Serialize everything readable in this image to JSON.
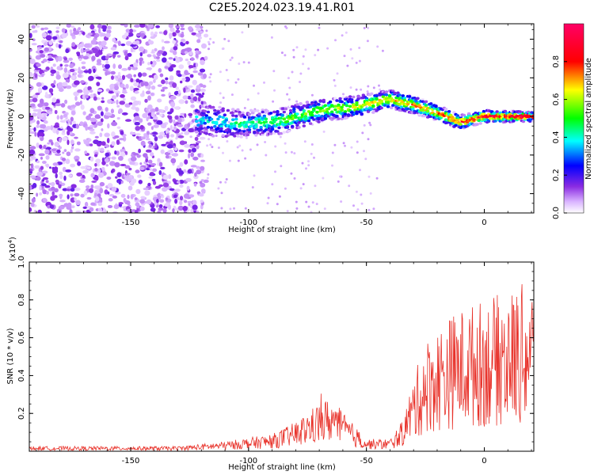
{
  "title": "C2E5.2024.023.19.41.R01",
  "chart_data": [
    {
      "type": "heatmap",
      "xlabel": "Height of straight line (km)",
      "ylabel": "Frequency (Hz)",
      "xlim": [
        -193,
        21
      ],
      "ylim": [
        -50,
        48
      ],
      "x_ticks": [
        -150,
        -100,
        -50,
        0
      ],
      "y_ticks": [
        -40,
        -20,
        0,
        20,
        40
      ],
      "colorbar": {
        "label": "Normalized spectral amplitude",
        "range": [
          0,
          1
        ],
        "ticks": [
          "0.0",
          "0.2",
          "0.4",
          "0.6",
          "0.8"
        ],
        "colors": [
          "#ffffff",
          "#8a2be2",
          "#0000ff",
          "#00ffff",
          "#00ff00",
          "#ffff00",
          "#ff0000",
          "#ff0066"
        ]
      },
      "ridge": {
        "description_points_x": [
          -120,
          -100,
          -85,
          -70,
          -55,
          -40,
          -30,
          -20,
          -10,
          0,
          20
        ],
        "description_points_y": [
          -2,
          -4,
          -2,
          3,
          5,
          9,
          6,
          2,
          -3,
          0,
          0
        ]
      }
    },
    {
      "type": "line",
      "xlabel": "Height of straight line (km)",
      "ylabel": "SNR (10 * v/v)",
      "multiplier_label": "(x10",
      "multiplier_exp": "4",
      "multiplier_close": ")",
      "xlim": [
        -193,
        21
      ],
      "ylim": [
        0,
        1.0
      ],
      "x_ticks": [
        -150,
        -100,
        -50,
        0
      ],
      "y_ticks": [
        "0.2",
        "0.4",
        "0.6",
        "0.8",
        "1.0"
      ],
      "color": "#e8322a",
      "envelope_x": [
        -193,
        -130,
        -110,
        -90,
        -80,
        -70,
        -65,
        -60,
        -50,
        -40,
        -35,
        -30,
        -25,
        -20,
        -15,
        -10,
        -5,
        0,
        10,
        20
      ],
      "envelope_y": [
        0.02,
        0.02,
        0.04,
        0.07,
        0.12,
        0.2,
        0.22,
        0.16,
        0.05,
        0.05,
        0.12,
        0.3,
        0.45,
        0.5,
        0.55,
        0.58,
        0.6,
        0.62,
        0.65,
        0.7
      ]
    }
  ]
}
